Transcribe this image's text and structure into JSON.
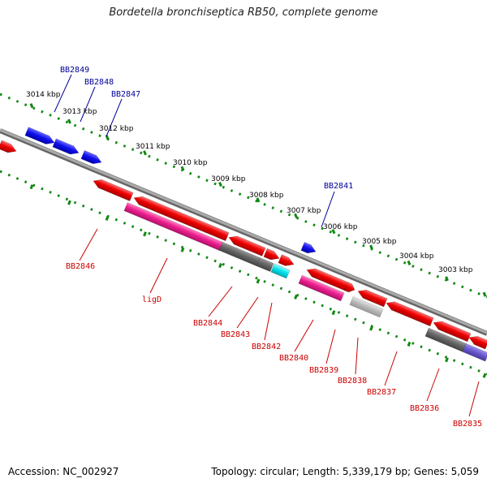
{
  "title": "Bordetella bronchiseptica RB50, complete genome",
  "footer": {
    "accession": "Accession: NC_002927",
    "summary": "Topology: circular; Length: 5,339,179 bp; Genes: 5,059"
  },
  "colors": {
    "forward_gene": "#1010ee",
    "reverse_gene": "#ee0000",
    "rrna": "#ee1f8f",
    "pseudo": "#666666",
    "pseudo_light": "#bbbbbb",
    "trna": "#00e5ee",
    "misc": "#6a5acd",
    "backbone": "#8c8c8c",
    "ruler": "#118811",
    "label_forward": "#000099",
    "label_reverse": "#cc0000"
  },
  "ruler_labels": [
    {
      "text": "3014 kbp"
    },
    {
      "text": "3013 kbp"
    },
    {
      "text": "3012 kbp"
    },
    {
      "text": "3011 kbp"
    },
    {
      "text": "3010 kbp"
    },
    {
      "text": "3009 kbp"
    },
    {
      "text": "3008 kbp"
    },
    {
      "text": "3007 kbp"
    },
    {
      "text": "3006 kbp"
    },
    {
      "text": "3005 kbp"
    },
    {
      "text": "3004 kbp"
    },
    {
      "text": "3003 kbp"
    }
  ],
  "gene_labels": [
    {
      "text": "BB2849",
      "strand": "forward"
    },
    {
      "text": "BB2848",
      "strand": "forward"
    },
    {
      "text": "BB2847",
      "strand": "forward"
    },
    {
      "text": "BB2841",
      "strand": "forward"
    },
    {
      "text": "BB2846",
      "strand": "reverse"
    },
    {
      "text": "ligD",
      "strand": "reverse"
    },
    {
      "text": "BB2844",
      "strand": "reverse"
    },
    {
      "text": "BB2843",
      "strand": "reverse"
    },
    {
      "text": "BB2842",
      "strand": "reverse"
    },
    {
      "text": "BB2840",
      "strand": "reverse"
    },
    {
      "text": "BB2839",
      "strand": "reverse"
    },
    {
      "text": "BB2838",
      "strand": "reverse"
    },
    {
      "text": "BB2837",
      "strand": "reverse"
    },
    {
      "text": "BB2836",
      "strand": "reverse"
    },
    {
      "text": "BB2835",
      "strand": "reverse"
    }
  ]
}
